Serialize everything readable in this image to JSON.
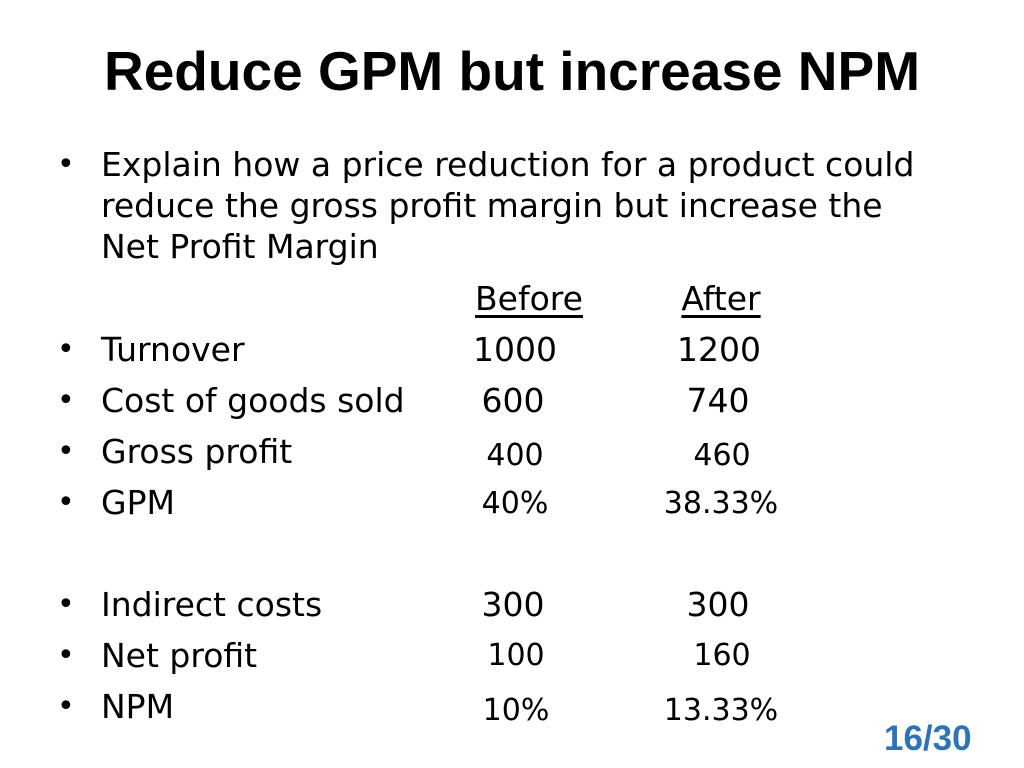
{
  "title": "Reduce GPM but increase NPM",
  "intro": {
    "bullet": "•",
    "lines": [
      "Explain how a price reduction for a product could",
      "reduce the gross profit margin but increase the",
      "Net Profit Margin"
    ]
  },
  "columns": {
    "before": "Before",
    "after": "After"
  },
  "rows": [
    {
      "bullet": "•",
      "label": "Turnover",
      "before": "1000",
      "after": "1200"
    },
    {
      "bullet": "•",
      "label": "Cost of goods sold",
      "before": "600",
      "after": "740"
    },
    {
      "bullet": "•",
      "label": "Gross profit",
      "before": "400",
      "after": "460"
    },
    {
      "bullet": "•",
      "label": "GPM",
      "before": "40%",
      "after": "38.33%"
    },
    {
      "bullet": "•",
      "label": "Indirect costs",
      "before": "300",
      "after": "300"
    },
    {
      "bullet": "•",
      "label": "Net profit",
      "before": "100",
      "after": "160"
    },
    {
      "bullet": "•",
      "label": "NPM",
      "before": "10%",
      "after": "13.33%"
    }
  ],
  "page_number": "16/30",
  "colors": {
    "page_number": "#2E74B5",
    "text": "#000000",
    "background": "#FFFFFF"
  }
}
